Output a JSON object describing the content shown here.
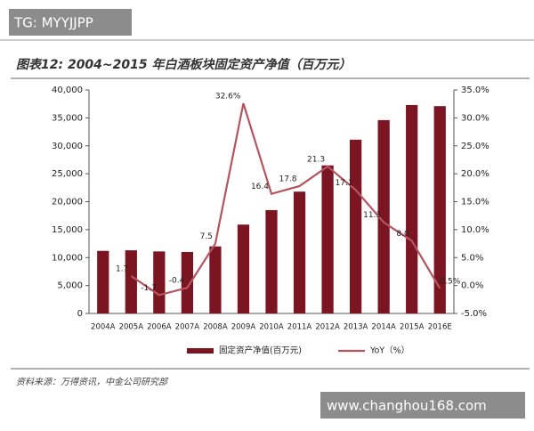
{
  "watermark_top": "TG: MYYJJPP",
  "watermark_bottom": "www.changhou168.com",
  "source": "资料来源：万得资讯，中金公司研究部",
  "chart_data": {
    "type": "bar_line",
    "title": "图表12: 2004~2015 年白酒板块固定资产净值（百万元）",
    "categories": [
      "2004A",
      "2005A",
      "2006A",
      "2007A",
      "2008A",
      "2009A",
      "2010A",
      "2011A",
      "2012A",
      "2013A",
      "2014A",
      "2015A",
      "2016E"
    ],
    "series": [
      {
        "name": "固定资产净值(百万元)",
        "type": "bar",
        "color": "#7a1521",
        "values": [
          11200,
          11300,
          11100,
          11000,
          12000,
          15900,
          18500,
          21800,
          26500,
          31100,
          34600,
          37300,
          37100
        ]
      },
      {
        "name": "YoY（%）",
        "type": "line",
        "axis": "y2",
        "color": "#b5545e",
        "values": [
          null,
          1.7,
          -1.7,
          -0.4,
          7.5,
          32.6,
          16.4,
          17.8,
          21.3,
          17.1,
          11.3,
          8.0,
          -0.5
        ],
        "value_labels": [
          null,
          "1.7",
          "-1.7",
          "-0.4",
          "7.5",
          "32.6%",
          "16.4",
          "17.8",
          "21.3",
          "17.1",
          "11.3",
          "8.0",
          "-0.5%"
        ]
      }
    ],
    "ylim": [
      0,
      40000
    ],
    "yticks": [
      0,
      {
        "value": 5000,
        "label": "5,000"
      },
      {
        "value": 10000,
        "label": "10,000"
      },
      {
        "value": 15000,
        "label": "15,000"
      },
      {
        "value": 20000,
        "label": "20,000"
      },
      {
        "value": 25000,
        "label": "25,000"
      },
      {
        "value": 30000,
        "label": "30,000"
      },
      {
        "value": 35000,
        "label": "35,000"
      },
      {
        "value": 40000,
        "label": "40,000"
      }
    ],
    "y2lim": [
      -5,
      35
    ],
    "y2ticks": [
      {
        "value": -5,
        "label": "-5.0%"
      },
      {
        "value": 0,
        "label": "0.0%"
      },
      {
        "value": 5,
        "label": "5.0%"
      },
      {
        "value": 10,
        "label": "10.0%"
      },
      {
        "value": 15,
        "label": "15.0%"
      },
      {
        "value": 20,
        "label": "20.0%"
      },
      {
        "value": 25,
        "label": "25.0%"
      },
      {
        "value": 30,
        "label": "30.0%"
      },
      {
        "value": 35,
        "label": "35.0%"
      }
    ],
    "grid": false
  }
}
